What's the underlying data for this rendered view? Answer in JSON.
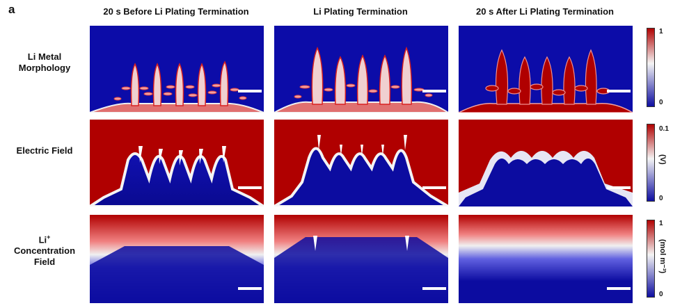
{
  "panel_letter": "a",
  "columns": [
    "20 s Before Li Plating Termination",
    "Li Plating Termination",
    "20 s After Li Plating Termination"
  ],
  "rows": [
    {
      "line1": "Li Metal",
      "line2": "Morphology"
    },
    {
      "line1": "Electric Field",
      "line2": ""
    },
    {
      "line1": "Li",
      "sup": "+",
      "line2": "Concentration",
      "line3": "Field"
    }
  ],
  "colorbars": [
    {
      "top_tick": "1",
      "bottom_tick": "0",
      "unit": ""
    },
    {
      "top_tick": "0.1",
      "bottom_tick": "0",
      "unit": "(V)"
    },
    {
      "top_tick": "1",
      "bottom_tick": "0",
      "unit": "(mol m⁻³)"
    }
  ],
  "colors": {
    "low": "#1010b0",
    "mid": "#f4f4f4",
    "high": "#b00000"
  },
  "icons": {
    "scale_bar": "scale-bar",
    "arrows": "vector-arrows"
  }
}
